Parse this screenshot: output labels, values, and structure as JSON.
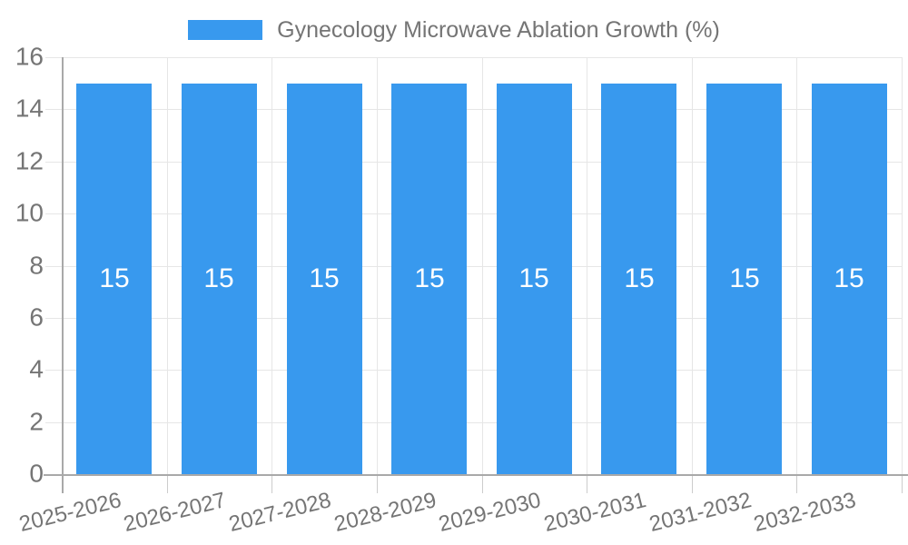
{
  "legend": {
    "label": "Gynecology Microwave Ablation Growth (%)"
  },
  "colors": {
    "bar": "#3899ee",
    "axis_text": "#757575",
    "grid": "#e6e6e6",
    "axis_line": "#a9a9a9",
    "category_tick": "#cccccc",
    "value_text": "#ffffff",
    "background": "#ffffff"
  },
  "chart_data": {
    "type": "bar",
    "title": "Gynecology Microwave Ablation Growth (%)",
    "categories": [
      "2025-2026",
      "2026-2027",
      "2027-2028",
      "2028-2029",
      "2029-2030",
      "2030-2031",
      "2031-2032",
      "2032-2033"
    ],
    "series": [
      {
        "name": "Gynecology Microwave Ablation Growth (%)",
        "values": [
          15,
          15,
          15,
          15,
          15,
          15,
          15,
          15
        ]
      }
    ],
    "value_labels": [
      "15",
      "15",
      "15",
      "15",
      "15",
      "15",
      "15",
      "15"
    ],
    "y_ticks": [
      0,
      2,
      4,
      6,
      8,
      10,
      12,
      14,
      16
    ],
    "ylim": [
      0,
      16
    ],
    "xlabel": "",
    "ylabel": "",
    "grid": true,
    "legend_position": "top",
    "bar_label_position": "middle"
  }
}
